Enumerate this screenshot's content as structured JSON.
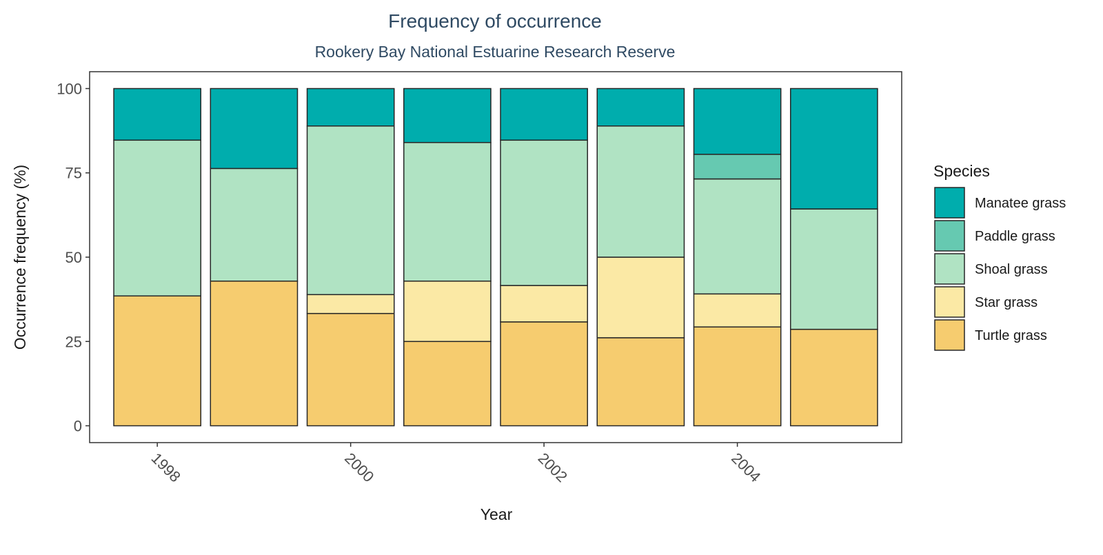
{
  "chart_data": {
    "type": "bar",
    "stacked": true,
    "title": "Frequency of occurrence",
    "subtitle": "Rookery Bay National Estuarine Research Reserve",
    "xlabel": "Year",
    "ylabel": "Occurrence frequency (%)",
    "x": [
      1998,
      1999,
      2000,
      2001,
      2002,
      2003,
      2004,
      2005
    ],
    "x_ticks": [
      1998,
      2000,
      2002,
      2004
    ],
    "x_tick_labels": [
      "1998",
      "2000",
      "2002",
      "2004"
    ],
    "x_range": [
      1997.3,
      2005.7
    ],
    "ylim": [
      -5,
      105
    ],
    "y_ticks": [
      0,
      25,
      50,
      75,
      100
    ],
    "y_tick_labels": [
      "0",
      "25",
      "50",
      "75",
      "100"
    ],
    "grid": false,
    "legend": {
      "title": "Species",
      "position": "right"
    },
    "series": [
      {
        "name": "Turtle grass",
        "color": "#f6cc6f",
        "values": [
          38.5,
          42.9,
          33.3,
          25.0,
          30.8,
          26.1,
          29.3,
          28.6
        ]
      },
      {
        "name": "Star grass",
        "color": "#fbe9a5",
        "values": [
          0,
          0,
          5.6,
          17.9,
          10.8,
          23.9,
          9.8,
          0
        ]
      },
      {
        "name": "Shoal grass",
        "color": "#b0e3c3",
        "values": [
          46.2,
          33.4,
          50.0,
          41.1,
          43.1,
          38.9,
          34.1,
          35.7
        ]
      },
      {
        "name": "Paddle grass",
        "color": "#66c9b1",
        "values": [
          0,
          0,
          0,
          0,
          0,
          0,
          7.3,
          0
        ]
      },
      {
        "name": "Manatee grass",
        "color": "#00adad",
        "values": [
          15.3,
          23.7,
          11.1,
          16.0,
          15.3,
          11.1,
          19.5,
          35.7
        ]
      }
    ],
    "legend_order": [
      "Manatee grass",
      "Paddle grass",
      "Shoal grass",
      "Star grass",
      "Turtle grass"
    ]
  }
}
